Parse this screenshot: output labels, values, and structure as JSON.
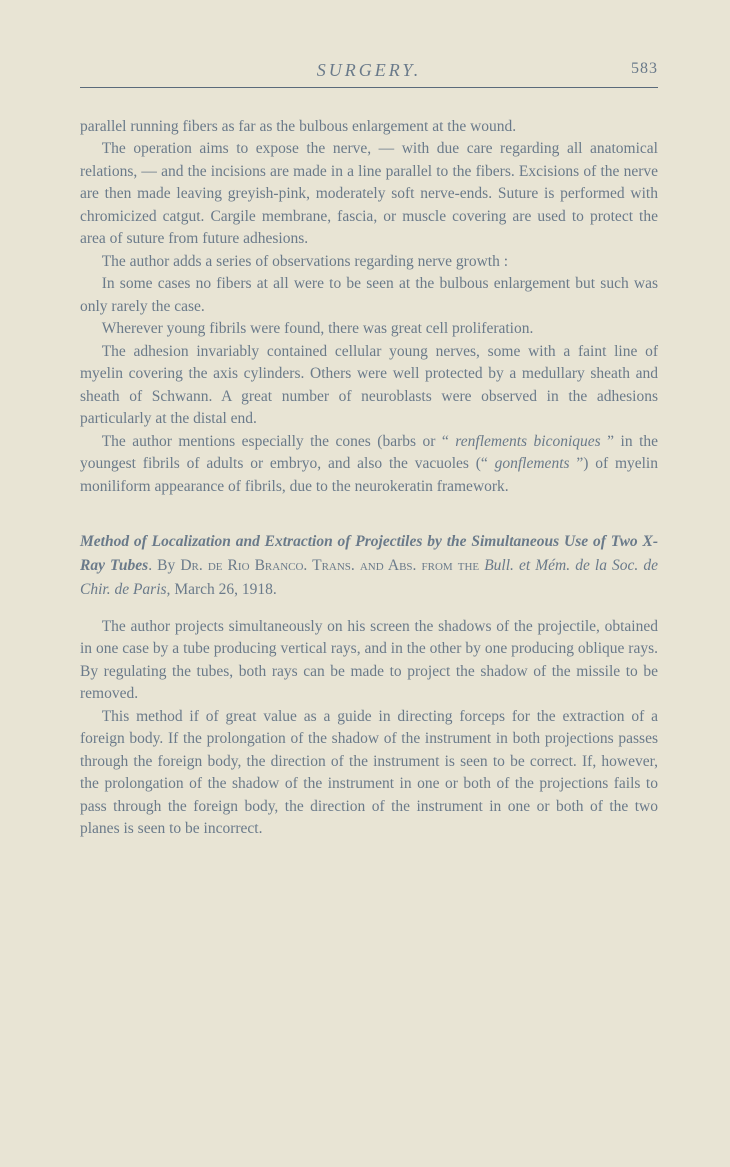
{
  "header": {
    "title": "SURGERY.",
    "page_number": "583"
  },
  "paragraphs": {
    "p1": "parallel running fibers as far as the bulbous enlargement at the wound.",
    "p2": "The operation aims to expose the nerve, — with due care regarding all anatomical relations, — and the incisions are made in a line parallel to the fibers.   Excisions of the nerve are then made leaving greyish-pink, moderately soft nerve-ends.  Suture is performed with chromicized catgut.   Cargile membrane, fascia, or muscle covering are used to protect the area of suture from future adhesions.",
    "p3": "The author adds a series of observations regarding nerve growth :",
    "p4": "In some cases no fibers at all were to be seen at the bulbous enlargement but such was only rarely the case.",
    "p5": "Wherever young fibrils were found, there was great cell proliferation.",
    "p6": "The adhesion invariably contained cellular young nerves, some with a faint line of myelin covering the axis cylinders.  Others were well protected by a medullary sheath and sheath of Schwann. A great number of neuroblasts were observed in the adhesions particularly at the distal end.",
    "p7a": "The author mentions especially the cones (barbs or “ ",
    "p7b": "renflements biconiques",
    "p7c": " ” in the youngest fibrils of adults or embryo, and also the vacuoles (“ ",
    "p7d": "gonflements",
    "p7e": " ”) of myelin moniliform appearance of fibrils, due to the neurokeratin framework."
  },
  "article": {
    "title_bold": "Method of Localization and Extraction of Projectiles by the Simultaneous Use of Two X-Ray Tubes",
    "period": ".   By ",
    "author_sc": "Dr.",
    "author_rest": " de Rio Branco.   Trans. and Abs. from the ",
    "source_italic": "Bull. et Mém. de la Soc. de Chir. de Paris,",
    "date": " March 26, 1918."
  },
  "paragraphs2": {
    "p8": "The author projects simultaneously on his screen the shadows of the projectile, obtained in one case by a tube producing vertical rays, and in the other by one producing oblique rays.  By regulating the tubes, both rays can be made to project the shadow of the missile to be removed.",
    "p9": "This method if of great value as a guide in directing forceps for the extraction of a foreign body.   If the prolongation of the shadow of the instrument in both projections passes through the foreign body, the direction of the instrument is seen to be correct.   If, however, the prolongation of the shadow of the instrument in one or both of the projections fails to pass through the foreign body, the direction of the instrument in one or both of the two planes is seen to be incorrect."
  },
  "colors": {
    "background": "#e8e4d4",
    "text": "#6a7a8a",
    "rule": "#5a6a7a"
  },
  "typography": {
    "body_fontsize": 15.5,
    "header_fontsize": 18,
    "line_height": 1.45
  }
}
